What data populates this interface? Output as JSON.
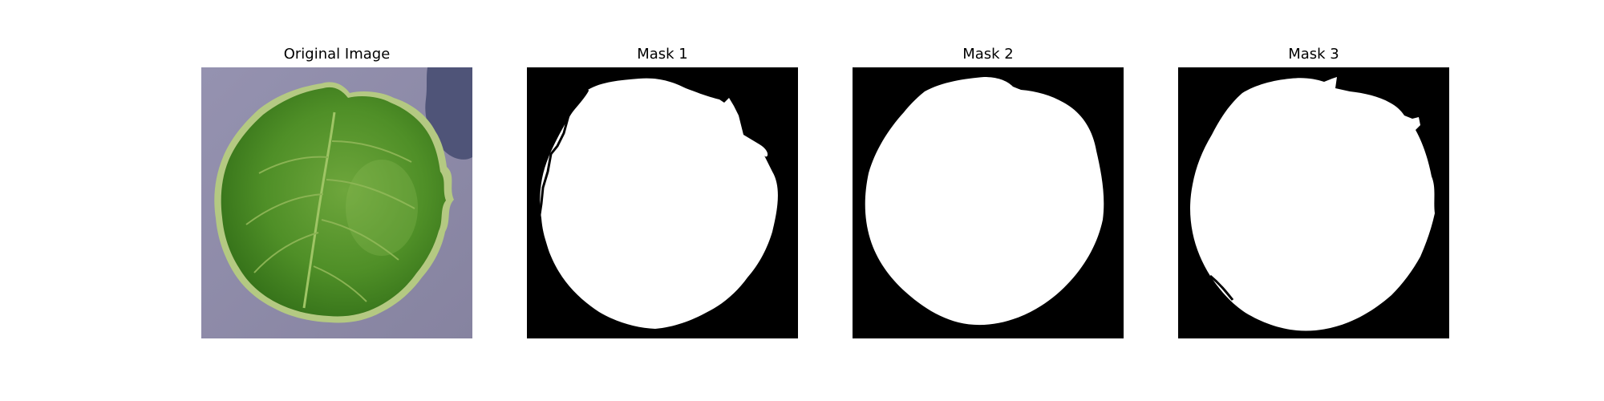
{
  "panels": [
    {
      "title": "Original Image",
      "kind": "photo-leaf"
    },
    {
      "title": "Mask 1",
      "kind": "mask"
    },
    {
      "title": "Mask 2",
      "kind": "mask"
    },
    {
      "title": "Mask 3",
      "kind": "mask"
    }
  ],
  "colors": {
    "photo_background": "#8d8aa8",
    "shadow": "#4f5478",
    "leaf_dark": "#2f6b16",
    "leaf_mid": "#4f8f27",
    "leaf_light": "#7cae45",
    "leaf_edge": "#b4c982",
    "mask_background": "#000000",
    "mask_foreground": "#ffffff"
  }
}
